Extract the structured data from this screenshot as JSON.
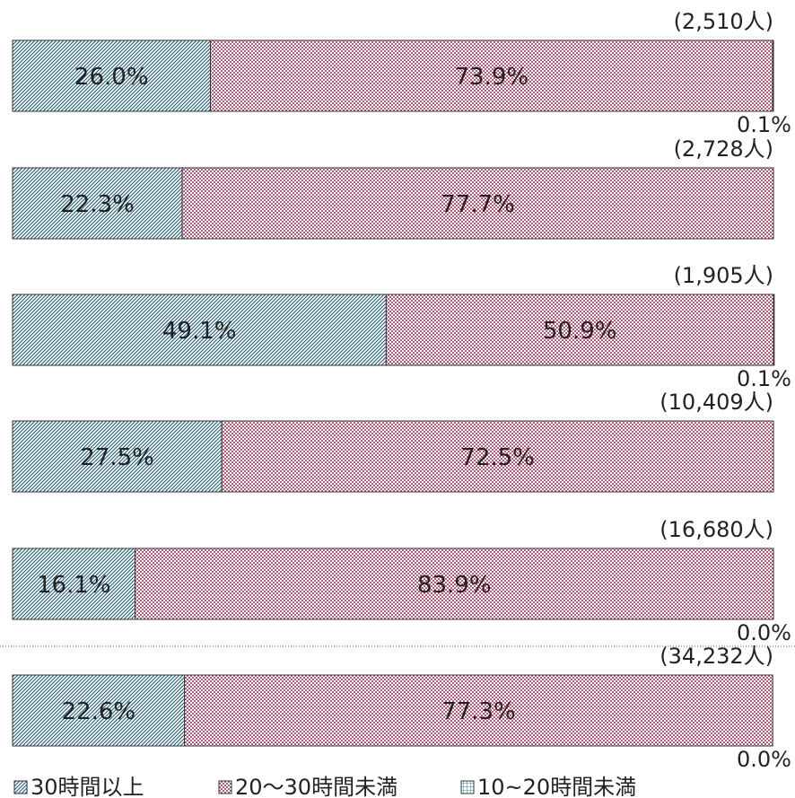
{
  "chart_data": {
    "type": "stacked_bar_horizontal",
    "categories": [
      null,
      null,
      null,
      null,
      null,
      null
    ],
    "totals": [
      "(2,510人)",
      "(2,728人)",
      "(1,905人)",
      "(10,409人)",
      "(16,680人)",
      "(34,232人)"
    ],
    "xlim": [
      0,
      100
    ],
    "series": [
      {
        "name": "30時間以上",
        "color": "#1f5f78",
        "values": [
          26.0,
          22.3,
          49.1,
          27.5,
          16.1,
          22.6
        ],
        "value_labels": [
          "26.0%",
          "22.3%",
          "49.1%",
          "27.5%",
          "16.1%",
          "22.6%"
        ]
      },
      {
        "name": "20～30時間未満",
        "color": "#b9587a",
        "values": [
          73.9,
          77.7,
          50.9,
          72.5,
          83.9,
          77.3
        ],
        "value_labels": [
          "73.9%",
          "77.7%",
          "50.9%",
          "72.5%",
          "83.9%",
          "77.3%"
        ]
      },
      {
        "name": "10~20時間未満",
        "color": "#2f8a9a",
        "values": [
          0.1,
          null,
          0.1,
          null,
          0.0,
          0.0
        ],
        "value_labels": [
          "0.1%",
          null,
          "0.1%",
          null,
          "0.0%",
          "0.0%"
        ]
      }
    ]
  }
}
